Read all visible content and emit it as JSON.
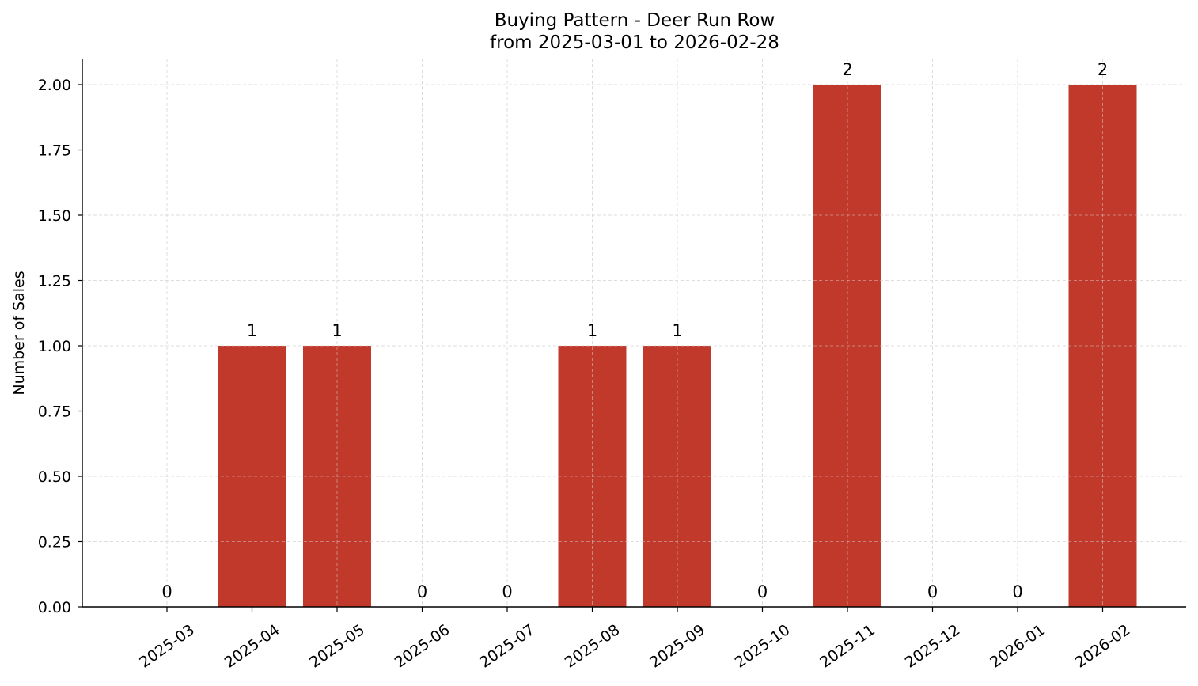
{
  "chart_data": {
    "type": "bar",
    "title": "Buying Pattern - Deer Run Row",
    "subtitle": "from 2025-03-01 to 2026-02-28",
    "xlabel": "",
    "ylabel": "Number of Sales",
    "categories": [
      "2025-03",
      "2025-04",
      "2025-05",
      "2025-06",
      "2025-07",
      "2025-08",
      "2025-09",
      "2025-10",
      "2025-11",
      "2025-12",
      "2026-01",
      "2026-02"
    ],
    "values": [
      0,
      1,
      1,
      0,
      0,
      1,
      1,
      0,
      2,
      0,
      0,
      2
    ],
    "data_labels": [
      "0",
      "1",
      "1",
      "0",
      "0",
      "1",
      "1",
      "0",
      "2",
      "0",
      "0",
      "2"
    ],
    "ylim": [
      0,
      2.1
    ],
    "yticks": [
      0,
      0.25,
      0.5,
      0.75,
      1.0,
      1.25,
      1.5,
      1.75,
      2.0
    ],
    "ytick_labels": [
      "0.00",
      "0.25",
      "0.50",
      "0.75",
      "1.00",
      "1.25",
      "1.50",
      "1.75",
      "2.00"
    ],
    "grid": true,
    "bar_color": "#c0392b",
    "grid_color": "#d9d9d9"
  }
}
